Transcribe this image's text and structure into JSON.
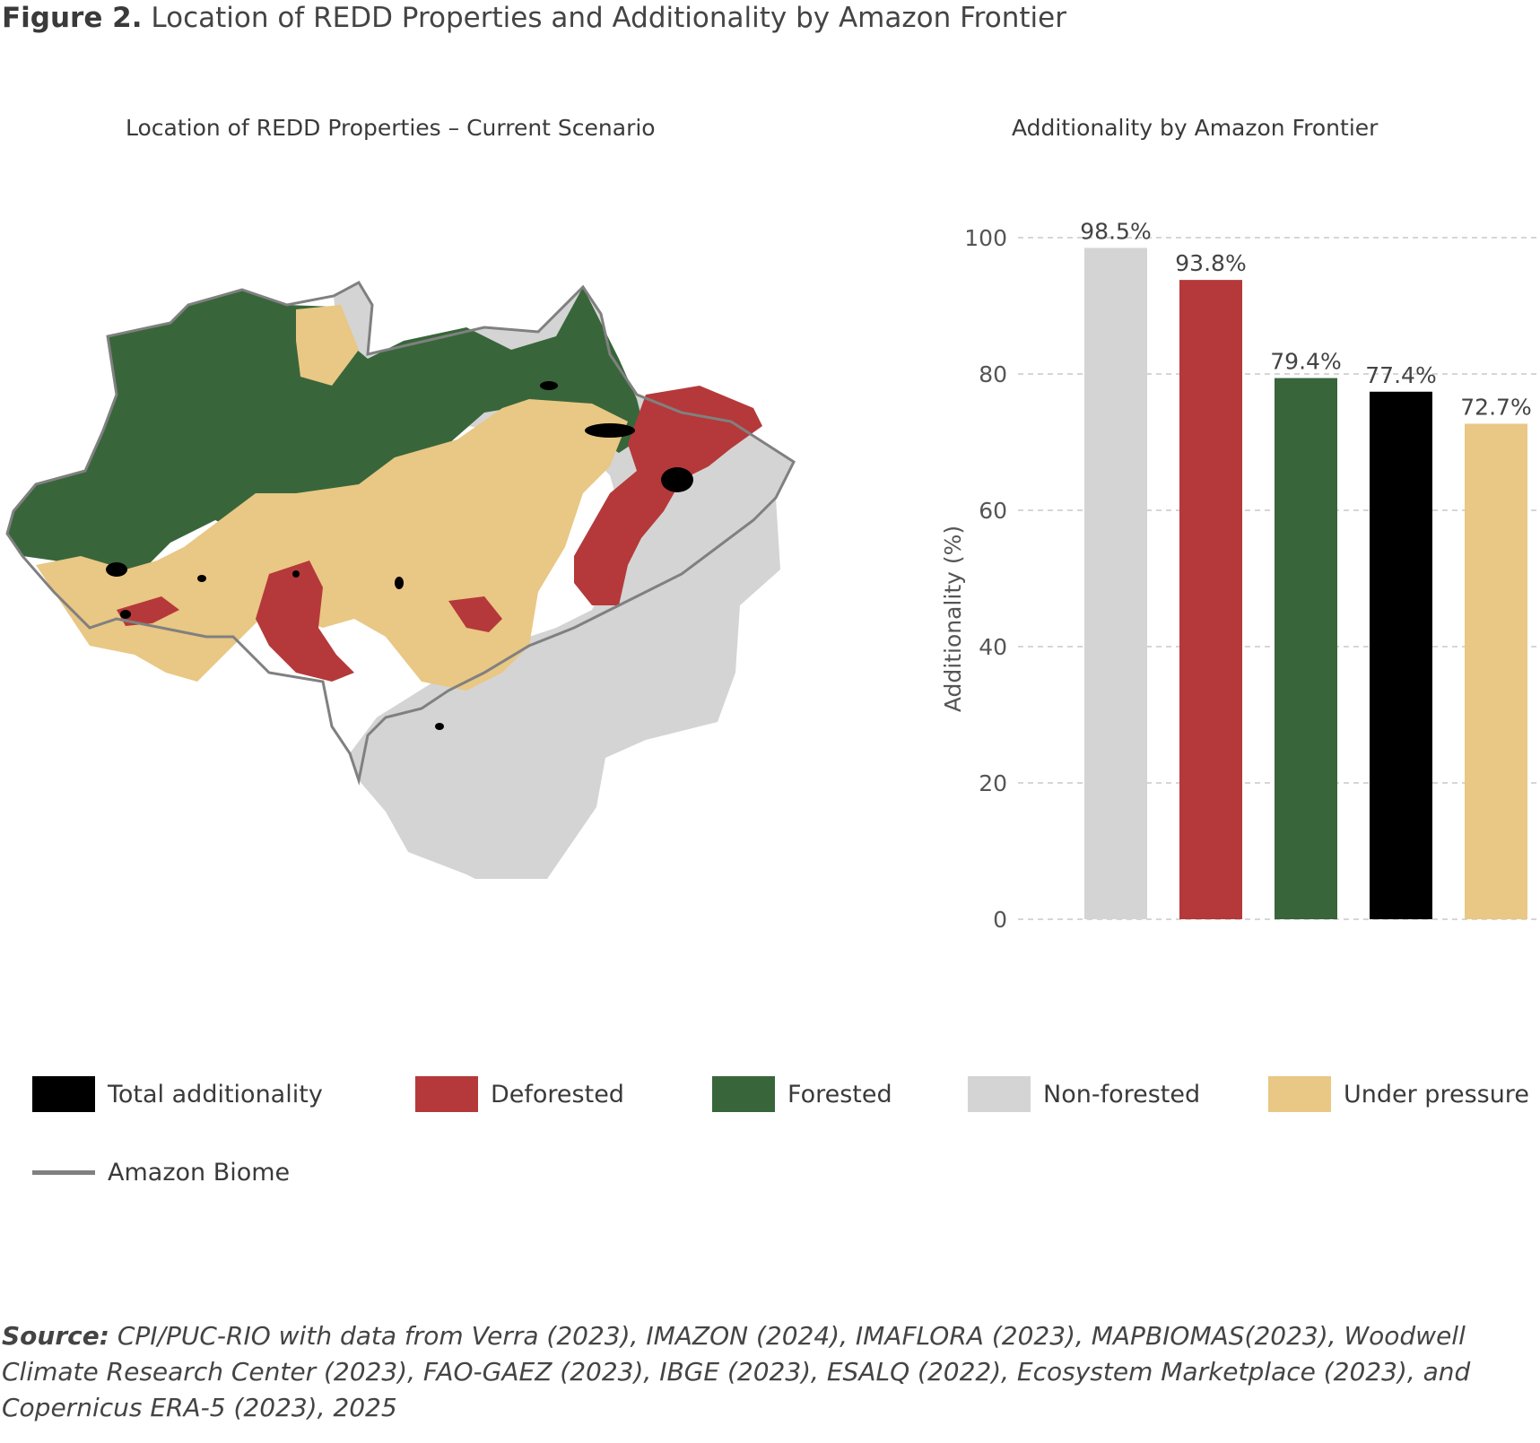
{
  "figure": {
    "label": "Figure 2.",
    "title": "Location of REDD Properties and Additionality by Amazon Frontier"
  },
  "map": {
    "title": "Location of REDD Properties – Current Scenario"
  },
  "chart_data": {
    "type": "bar",
    "title": "Additionality by Amazon Frontier",
    "xlabel": "",
    "ylabel": "Additionality (%)",
    "ylim": [
      0,
      100
    ],
    "yticks": [
      0,
      20,
      40,
      60,
      80,
      100
    ],
    "grid": "horizontal dashed",
    "categories": [
      "Non-forested",
      "Deforested",
      "Forested",
      "Total additionality",
      "Under pressure"
    ],
    "values": [
      98.5,
      93.8,
      79.4,
      77.4,
      72.7
    ],
    "value_labels": [
      "98.5%",
      "93.8%",
      "79.4%",
      "77.4%",
      "72.7%"
    ],
    "colors": [
      "#d4d4d4",
      "#b5393a",
      "#38663a",
      "#000000",
      "#e9c784"
    ]
  },
  "legend": {
    "placement": "bottom",
    "items": [
      {
        "label": "Total additionality",
        "color": "#000000"
      },
      {
        "label": "Deforested",
        "color": "#b5393a"
      },
      {
        "label": "Forested",
        "color": "#38663a"
      },
      {
        "label": "Non-forested",
        "color": "#d4d4d4"
      },
      {
        "label": "Under pressure",
        "color": "#e9c784"
      }
    ],
    "line_item": {
      "label": "Amazon Biome",
      "color": "#808080"
    }
  },
  "source": {
    "label": "Source:",
    "text": "CPI/PUC-RIO with data from Verra (2023), IMAZON (2024), IMAFLORA (2023), MAPBIOMAS(2023), Woodwell Climate Research Center (2023), FAO-GAEZ (2023), IBGE (2023), ESALQ (2022), Ecosystem Marketplace (2023), and Copernicus ERA-5 (2023), 2025"
  }
}
